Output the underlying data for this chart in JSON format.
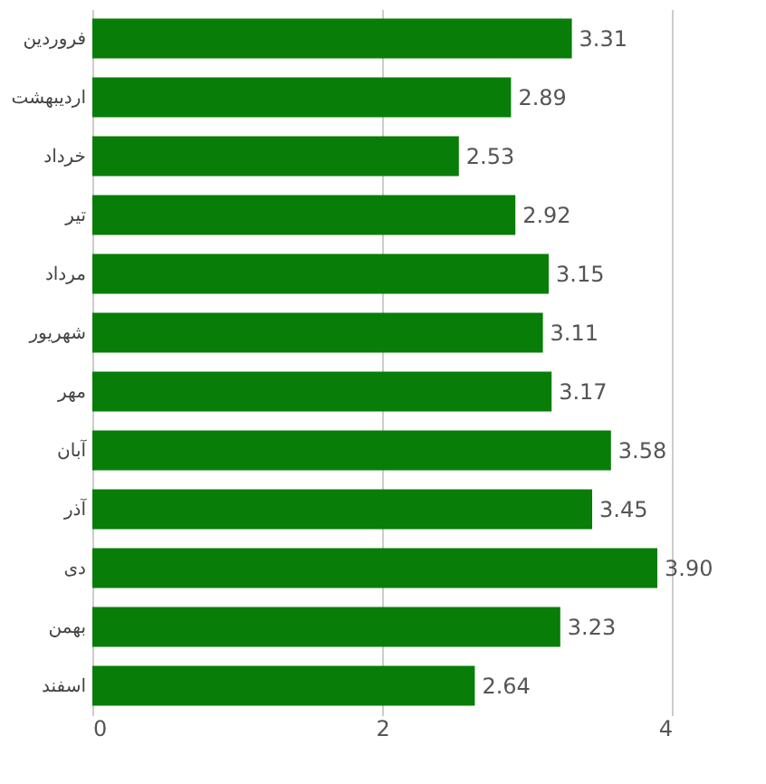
{
  "chart_data": {
    "type": "bar",
    "orientation": "horizontal",
    "categories": [
      "فروردین",
      "اردیبهشت",
      "خرداد",
      "تیر",
      "مرداد",
      "شهریور",
      "مهر",
      "آبان",
      "آذر",
      "دی",
      "بهمن",
      "اسفند"
    ],
    "values": [
      3.31,
      2.89,
      2.53,
      2.92,
      3.15,
      3.11,
      3.17,
      3.58,
      3.45,
      3.9,
      3.23,
      2.64
    ],
    "value_labels": [
      "3.31",
      "2.89",
      "2.53",
      "2.92",
      "3.15",
      "3.11",
      "3.17",
      "3.58",
      "3.45",
      "3.90",
      "3.23",
      "2.64"
    ],
    "color": "#087d08",
    "xlim": [
      0,
      4
    ],
    "xticks": [
      0,
      2,
      4
    ],
    "grid": "x"
  }
}
